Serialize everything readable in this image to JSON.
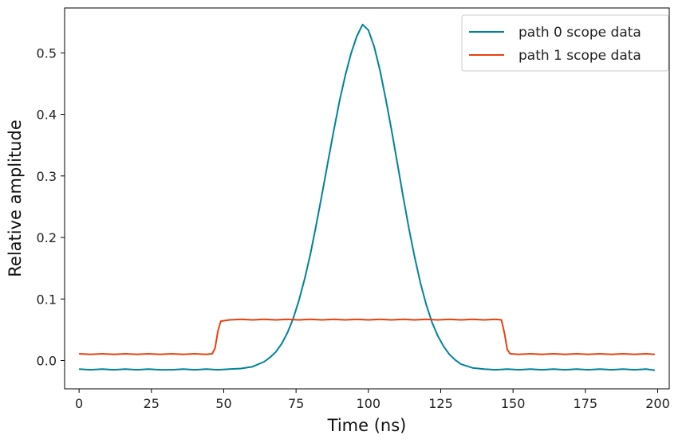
{
  "chart_data": {
    "type": "line",
    "xlabel": "Time (ns)",
    "ylabel": "Relative amplitude",
    "xlim": [
      -5,
      204
    ],
    "ylim": [
      -0.046,
      0.573
    ],
    "xticks": [
      0,
      25,
      50,
      75,
      100,
      125,
      150,
      175,
      200
    ],
    "yticks": [
      0.0,
      0.1,
      0.2,
      0.3,
      0.4,
      0.5
    ],
    "ytick_labels": [
      "0.0",
      "0.1",
      "0.2",
      "0.3",
      "0.4",
      "0.5"
    ],
    "grid": false,
    "legend_position": "top-right",
    "series": [
      {
        "name": "path 0 scope data",
        "color": "#00829a",
        "x": [
          0,
          4,
          8,
          12,
          16,
          20,
          24,
          28,
          32,
          36,
          40,
          44,
          48,
          52,
          56,
          60,
          64,
          66,
          68,
          70,
          72,
          74,
          76,
          78,
          80,
          82,
          84,
          86,
          88,
          90,
          92,
          94,
          96,
          98,
          100,
          102,
          104,
          106,
          108,
          110,
          112,
          114,
          116,
          118,
          120,
          122,
          124,
          126,
          128,
          130,
          132,
          136,
          140,
          144,
          148,
          152,
          156,
          160,
          164,
          168,
          172,
          176,
          180,
          184,
          188,
          192,
          196,
          199
        ],
        "values": [
          -0.014,
          -0.015,
          -0.014,
          -0.015,
          -0.014,
          -0.015,
          -0.014,
          -0.015,
          -0.015,
          -0.014,
          -0.015,
          -0.014,
          -0.015,
          -0.014,
          -0.013,
          -0.01,
          -0.002,
          0.005,
          0.014,
          0.027,
          0.045,
          0.068,
          0.098,
          0.133,
          0.174,
          0.221,
          0.271,
          0.322,
          0.373,
          0.421,
          0.463,
          0.499,
          0.527,
          0.546,
          0.537,
          0.51,
          0.472,
          0.425,
          0.375,
          0.321,
          0.267,
          0.215,
          0.168,
          0.126,
          0.091,
          0.062,
          0.04,
          0.023,
          0.01,
          0.001,
          -0.006,
          -0.012,
          -0.014,
          -0.015,
          -0.014,
          -0.015,
          -0.014,
          -0.015,
          -0.014,
          -0.015,
          -0.014,
          -0.015,
          -0.014,
          -0.015,
          -0.014,
          -0.015,
          -0.014,
          -0.016
        ]
      },
      {
        "name": "path 1 scope data",
        "color": "#e8400e",
        "x": [
          0,
          4,
          8,
          12,
          16,
          20,
          24,
          28,
          32,
          36,
          40,
          44,
          46,
          47,
          48,
          49,
          52,
          56,
          60,
          64,
          68,
          72,
          76,
          80,
          84,
          88,
          92,
          96,
          100,
          104,
          108,
          112,
          116,
          120,
          124,
          128,
          132,
          136,
          140,
          144,
          146,
          147,
          148,
          149,
          152,
          156,
          160,
          164,
          168,
          172,
          176,
          180,
          184,
          188,
          192,
          196,
          199
        ],
        "values": [
          0.011,
          0.01,
          0.011,
          0.01,
          0.011,
          0.01,
          0.011,
          0.01,
          0.011,
          0.01,
          0.011,
          0.01,
          0.011,
          0.02,
          0.048,
          0.064,
          0.066,
          0.067,
          0.066,
          0.067,
          0.066,
          0.067,
          0.066,
          0.067,
          0.066,
          0.067,
          0.066,
          0.067,
          0.066,
          0.067,
          0.066,
          0.067,
          0.066,
          0.067,
          0.066,
          0.067,
          0.066,
          0.067,
          0.066,
          0.067,
          0.066,
          0.045,
          0.018,
          0.011,
          0.01,
          0.011,
          0.01,
          0.011,
          0.01,
          0.011,
          0.01,
          0.011,
          0.01,
          0.011,
          0.01,
          0.011,
          0.01
        ]
      }
    ]
  }
}
